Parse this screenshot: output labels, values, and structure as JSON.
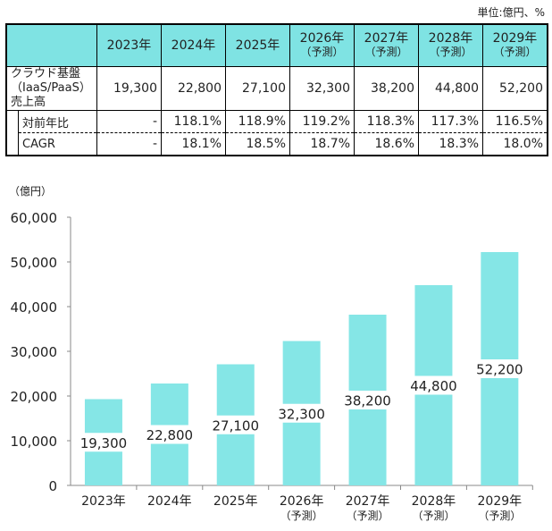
{
  "unit": "単位:億円、%",
  "table": {
    "years": [
      {
        "y": "2023年",
        "s": ""
      },
      {
        "y": "2024年",
        "s": ""
      },
      {
        "y": "2025年",
        "s": ""
      },
      {
        "y": "2026年",
        "s": "（予測）"
      },
      {
        "y": "2027年",
        "s": "（予測）"
      },
      {
        "y": "2028年",
        "s": "（予測）"
      },
      {
        "y": "2029年",
        "s": "（予測）"
      }
    ],
    "row_label": [
      "クラウド基盤",
      "（IaaS/PaaS）",
      "売上高"
    ],
    "sales": [
      "19,300",
      "22,800",
      "27,100",
      "32,300",
      "38,200",
      "44,800",
      "52,200"
    ],
    "yoy_label": "対前年比",
    "yoy": [
      "-",
      "118.1%",
      "118.9%",
      "119.2%",
      "118.3%",
      "117.3%",
      "116.5%"
    ],
    "cagr_label": "CAGR",
    "cagr": [
      "-",
      "18.1%",
      "18.5%",
      "18.7%",
      "18.6%",
      "18.3%",
      "18.0%"
    ]
  },
  "chart_data": {
    "type": "bar",
    "ylabel": "（億円）",
    "categories": [
      [
        "2023年",
        ""
      ],
      [
        "2024年",
        ""
      ],
      [
        "2025年",
        ""
      ],
      [
        "2026年",
        "（予測）"
      ],
      [
        "2027年",
        "（予測）"
      ],
      [
        "2028年",
        "（予測）"
      ],
      [
        "2029年",
        "（予測）"
      ]
    ],
    "values": [
      19300,
      22800,
      27100,
      32300,
      38200,
      44800,
      52200
    ],
    "data_labels": [
      "19,300",
      "22,800",
      "27,100",
      "32,300",
      "38,200",
      "44,800",
      "52,200"
    ],
    "ylim": [
      0,
      60000
    ],
    "yticks": [
      "0",
      "10,000",
      "20,000",
      "30,000",
      "40,000",
      "50,000",
      "60,000"
    ],
    "grid": false,
    "bar_color": "#85e6e6"
  }
}
